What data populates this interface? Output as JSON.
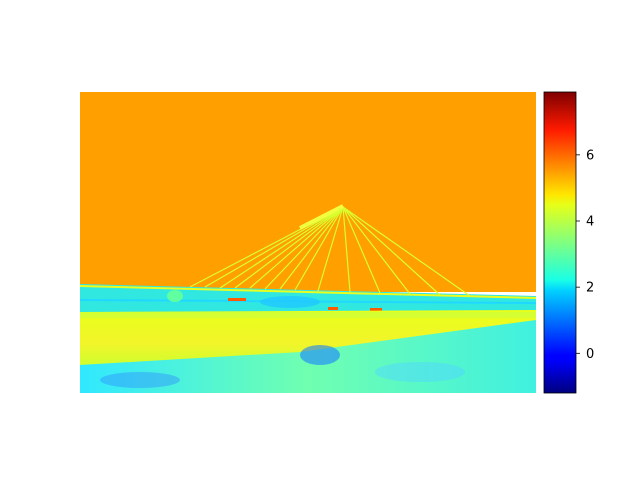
{
  "chart_data": {
    "type": "heatmap",
    "title": "",
    "xlabel": "",
    "ylabel": "",
    "axes_visible": false,
    "colormap": "jet",
    "colorbar": {
      "vmin": -1.2,
      "vmax": 7.9,
      "ticks": [
        0,
        2,
        4,
        6
      ],
      "tick_labels": [
        "0",
        "2",
        "4",
        "6"
      ],
      "placement": "right"
    },
    "regions": [
      {
        "name": "sky",
        "value": 5.4
      },
      {
        "name": "bridge-cables",
        "value": 4.3
      },
      {
        "name": "bridge-deck",
        "value": 2.3
      },
      {
        "name": "riverbank",
        "value": 4.3
      },
      {
        "name": "grass-foreground",
        "value": 2.4
      }
    ]
  }
}
